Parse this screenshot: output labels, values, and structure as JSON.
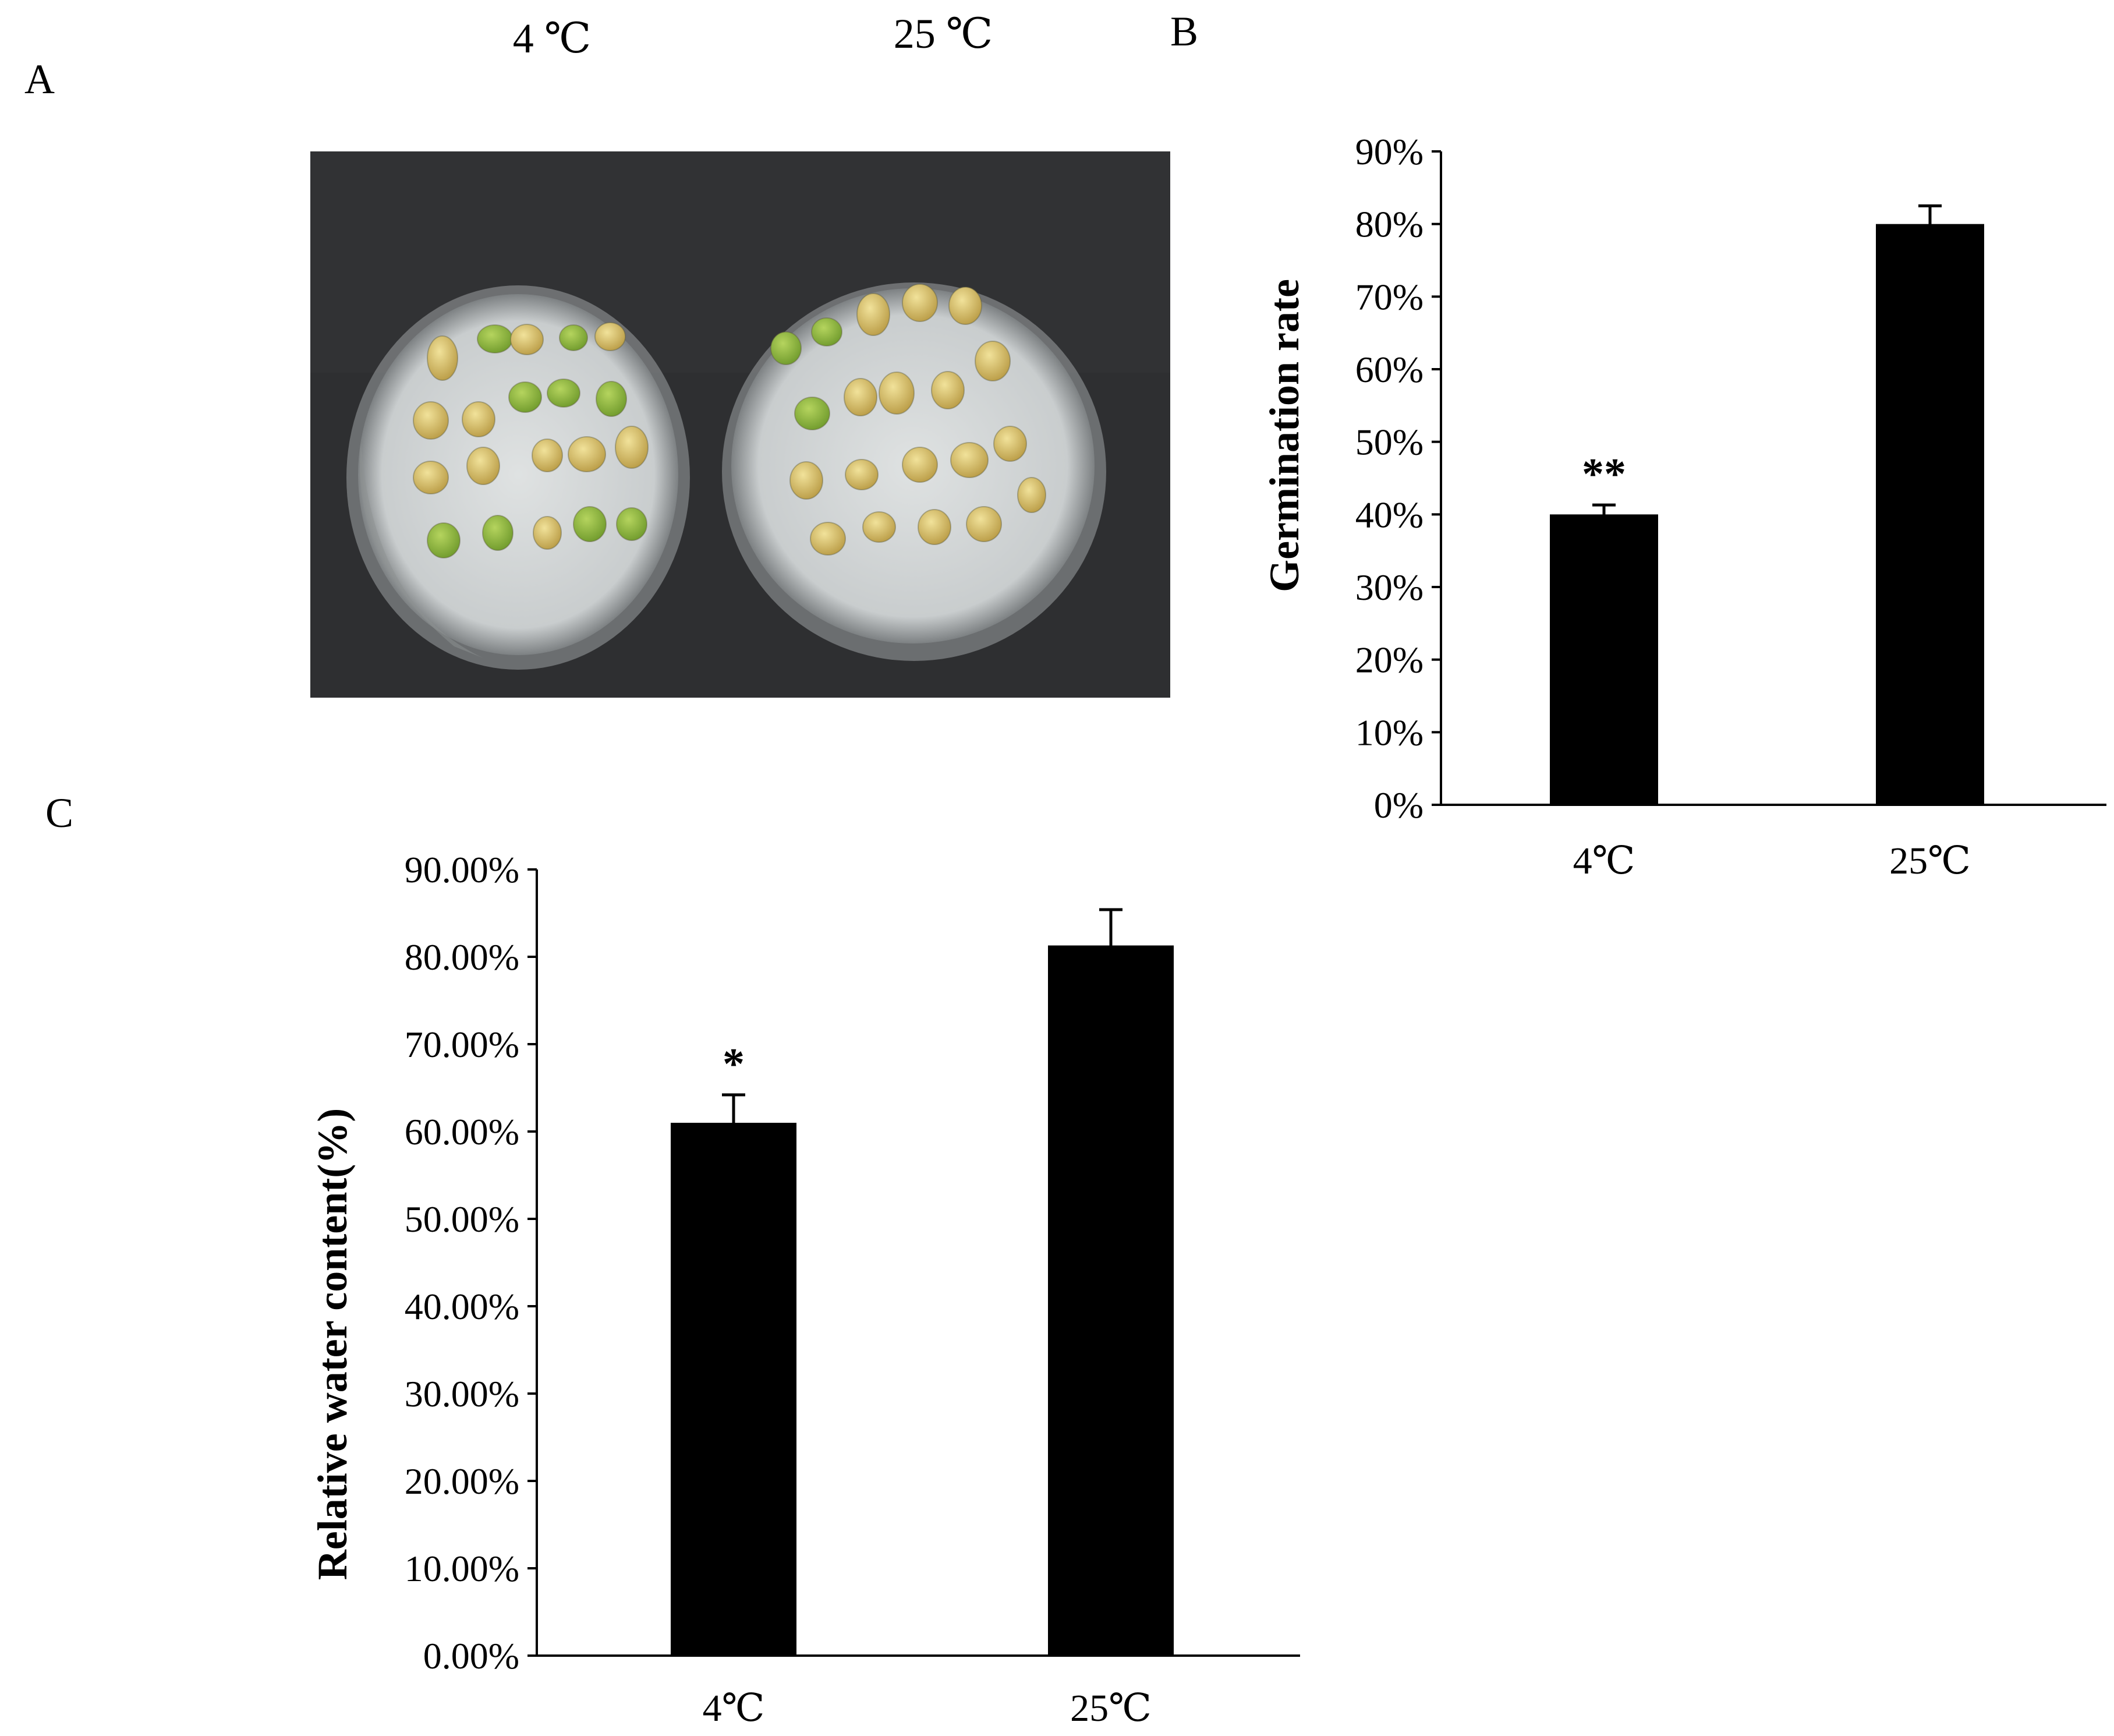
{
  "panels": {
    "a": {
      "letter": "A",
      "cond_left": "4 ℃",
      "cond_right": "25 ℃"
    },
    "b": {
      "letter": "B"
    },
    "c": {
      "letter": "C"
    }
  },
  "photo": {
    "description": "Two petri dishes with germinating seeds on dark background"
  },
  "colors": {
    "bar": "#000000",
    "axis": "#000000",
    "background": "#ffffff",
    "photo_bg": "#2e2f31",
    "dish_paper": "#d9dcdc",
    "seed_green": "#8bb83c",
    "seed_yellow": "#d8c46a"
  },
  "chart_data": [
    {
      "id": "germination",
      "type": "bar",
      "categories": [
        "4℃",
        "25℃"
      ],
      "values": [
        40,
        80
      ],
      "errors": [
        1.3,
        2.5
      ],
      "significance": [
        "**",
        ""
      ],
      "ylim": [
        0,
        90
      ],
      "yticks": [
        0,
        10,
        20,
        30,
        40,
        50,
        60,
        70,
        80,
        90
      ],
      "ytick_labels": [
        "0%",
        "10%",
        "20%",
        "30%",
        "40%",
        "50%",
        "60%",
        "70%",
        "80%",
        "90%"
      ],
      "ylabel": "Germination rate",
      "xlabel": "",
      "title": ""
    },
    {
      "id": "water",
      "type": "bar",
      "categories": [
        "4℃",
        "25℃"
      ],
      "values": [
        61,
        81.3
      ],
      "errors": [
        3.2,
        4.1
      ],
      "significance": [
        "*",
        ""
      ],
      "ylim": [
        0,
        90
      ],
      "yticks": [
        0,
        10,
        20,
        30,
        40,
        50,
        60,
        70,
        80,
        90
      ],
      "ytick_labels": [
        "0.00%",
        "10.00%",
        "20.00%",
        "30.00%",
        "40.00%",
        "50.00%",
        "60.00%",
        "70.00%",
        "80.00%",
        "90.00%"
      ],
      "ylabel": "Relative water content(%)",
      "xlabel": "",
      "title": ""
    }
  ]
}
